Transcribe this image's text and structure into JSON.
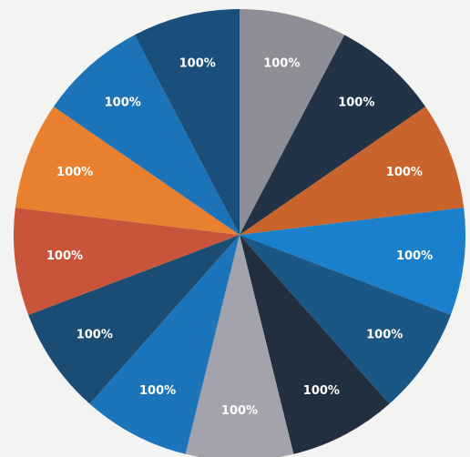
{
  "chart_data": {
    "type": "pie",
    "title": "",
    "start_angle_deg": 0,
    "direction": "clockwise",
    "slices": [
      {
        "label": "100%",
        "value": 1,
        "color": "#8e8e97"
      },
      {
        "label": "100%",
        "value": 1,
        "color": "#223348"
      },
      {
        "label": "100%",
        "value": 1,
        "color": "#c8642c"
      },
      {
        "label": "100%",
        "value": 1,
        "color": "#1a80cb"
      },
      {
        "label": "100%",
        "value": 1,
        "color": "#1a5784"
      },
      {
        "label": "100%",
        "value": 1,
        "color": "#222f3f"
      },
      {
        "label": "100%",
        "value": 1,
        "color": "#a3a3ae"
      },
      {
        "label": "100%",
        "value": 1,
        "color": "#1c74bb"
      },
      {
        "label": "100%",
        "value": 1,
        "color": "#1a4c74"
      },
      {
        "label": "100%",
        "value": 1,
        "color": "#c8553a"
      },
      {
        "label": "100%",
        "value": 1,
        "color": "#e8802f"
      },
      {
        "label": "100%",
        "value": 1,
        "color": "#1d73b8"
      },
      {
        "label": "100%",
        "value": 1,
        "color": "#1a4f7c"
      }
    ]
  }
}
